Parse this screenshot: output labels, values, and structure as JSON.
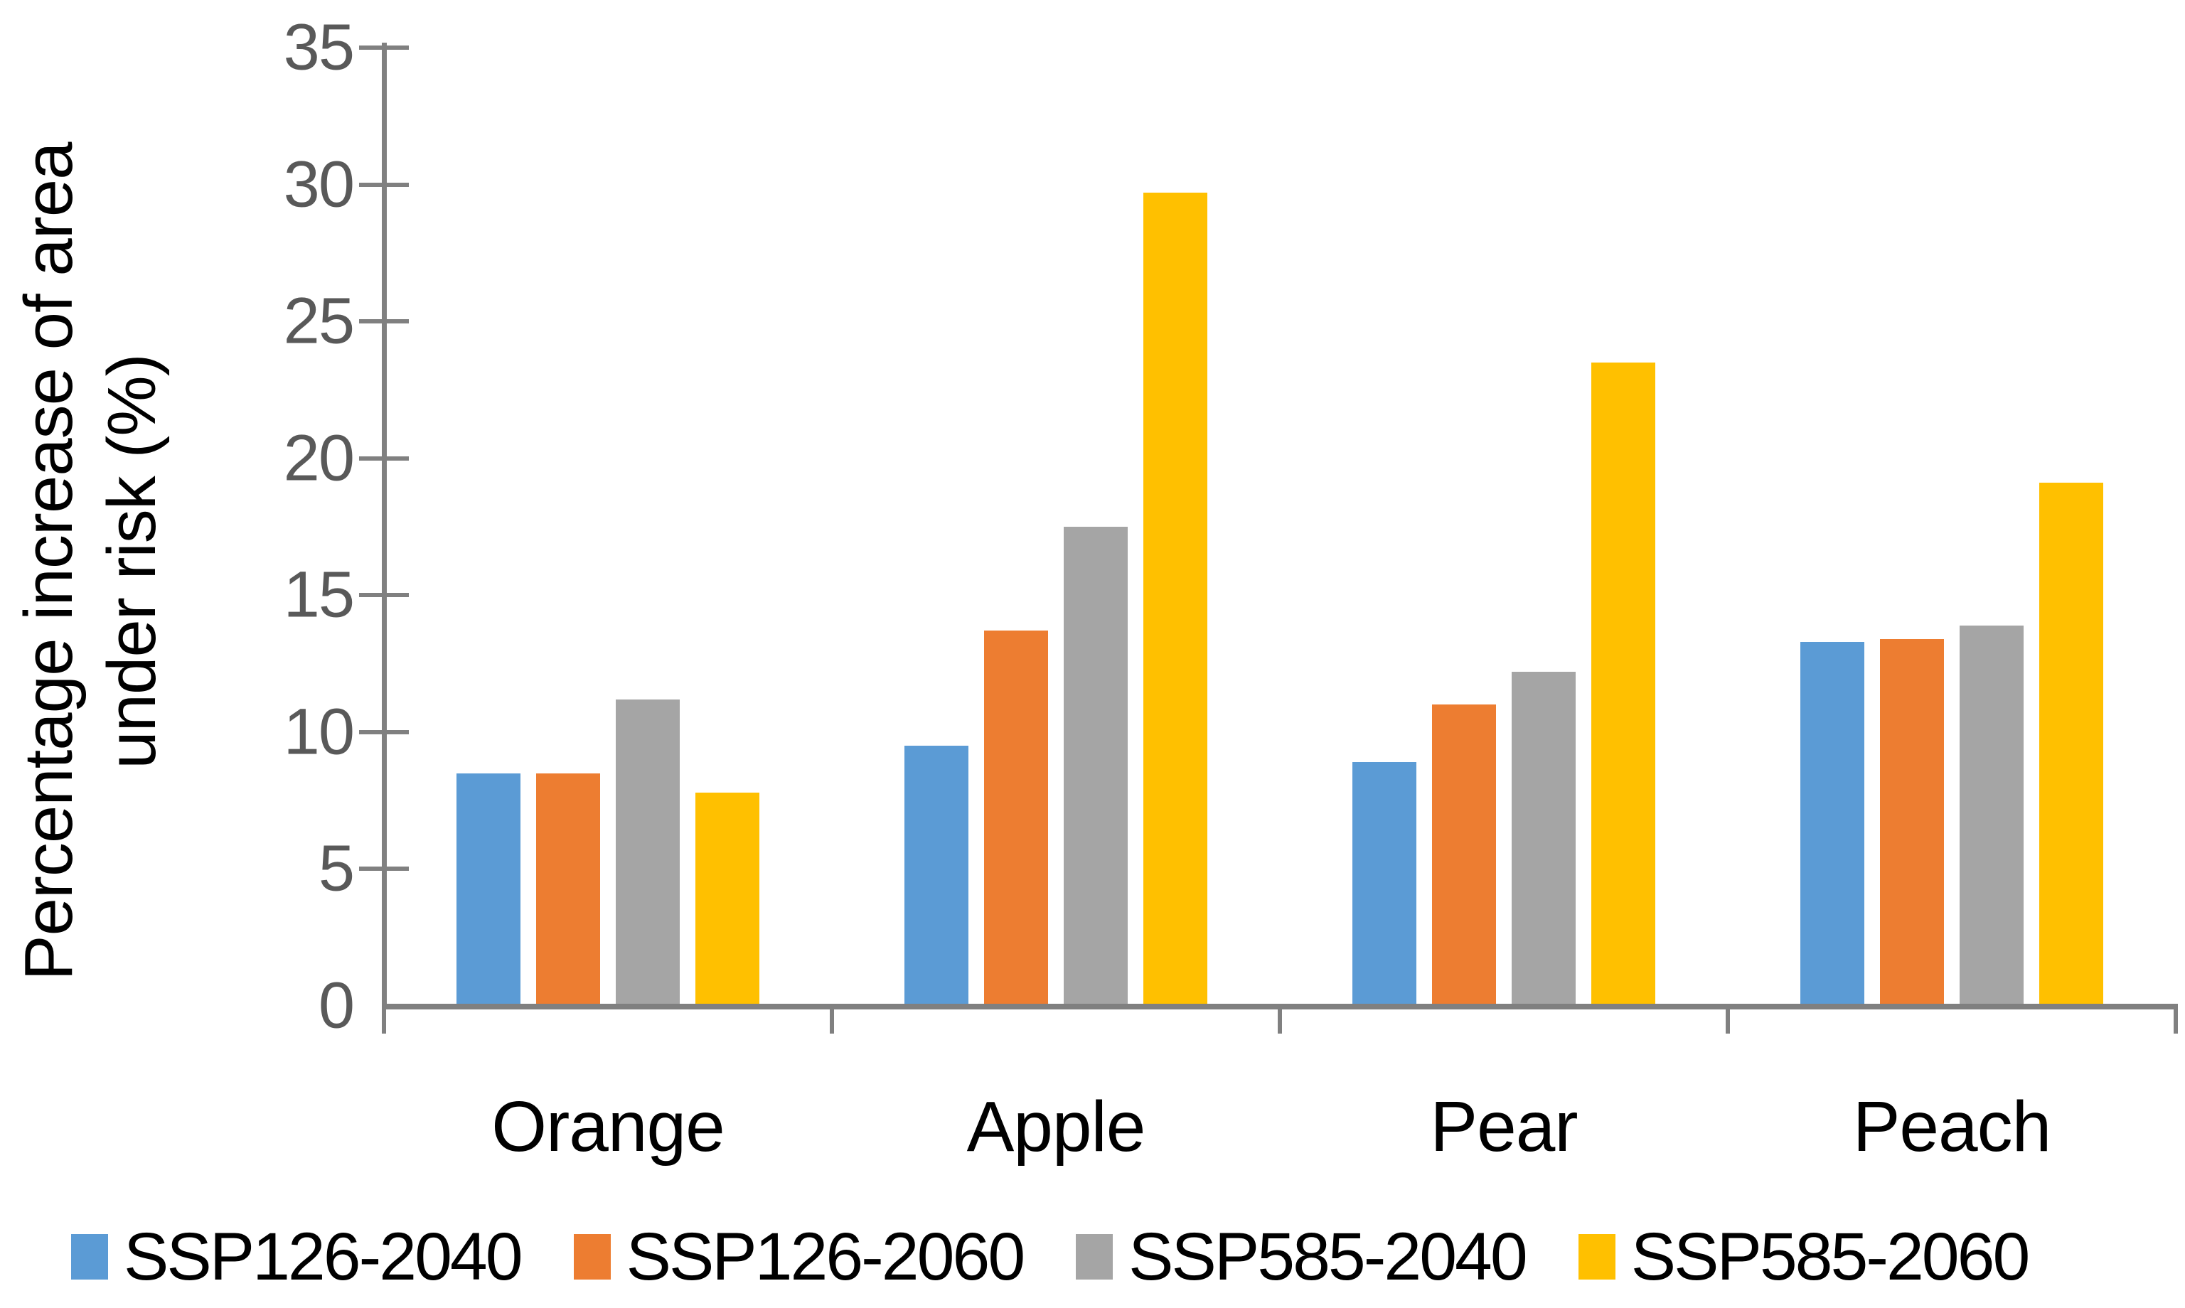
{
  "chart_data": {
    "type": "bar",
    "title": "",
    "ylabel_line1": "Percentage increase of area",
    "ylabel_line2": "under risk (%)",
    "xlabel": "",
    "categories": [
      "Orange",
      "Apple",
      "Pear",
      "Peach"
    ],
    "series": [
      {
        "name": "SSP126-2040",
        "color": "#5B9BD5",
        "values": [
          8.5,
          9.5,
          8.9,
          13.3
        ]
      },
      {
        "name": "SSP126-2060",
        "color": "#ED7D31",
        "values": [
          8.5,
          13.7,
          11.0,
          13.4
        ]
      },
      {
        "name": "SSP585-2040",
        "color": "#A5A5A5",
        "values": [
          11.2,
          17.5,
          12.2,
          13.9
        ]
      },
      {
        "name": "SSP585-2060",
        "color": "#FFC000",
        "values": [
          7.8,
          29.7,
          23.5,
          19.1
        ]
      }
    ],
    "ylim": [
      0,
      35
    ],
    "yticks": [
      0,
      5,
      10,
      15,
      20,
      25,
      30,
      35
    ],
    "grid": false,
    "legend_position": "bottom",
    "axis_color": "#808080",
    "tick_label_color": "#595959",
    "text_color": "#000000"
  }
}
